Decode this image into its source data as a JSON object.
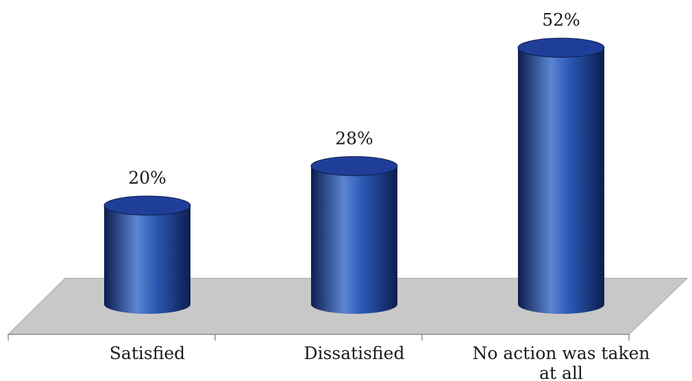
{
  "chart_data": {
    "type": "bar",
    "style": "3d-cylinder",
    "categories": [
      "Satisfied",
      "Dissatisfied",
      "No action was taken at all"
    ],
    "category_label_lines": [
      [
        "Satisfied"
      ],
      [
        "Dissatisfied"
      ],
      [
        "No action was taken",
        "at all"
      ]
    ],
    "values": [
      20,
      28,
      52
    ],
    "value_labels": [
      "20%",
      "28%",
      "52%"
    ],
    "unit": "%",
    "ylim": [
      0,
      52
    ],
    "title": "",
    "xlabel": "",
    "ylabel": "",
    "grid": false,
    "legend": "none",
    "colors": {
      "bar_light": "#5b86d2",
      "bar_mid": "#2b58b4",
      "bar_dark": "#0d1d4e",
      "bar_top": "#1f3e98",
      "floor": "#c8c8c8",
      "floor_edge": "#a6a6a6",
      "axis": "#7a7a7a"
    }
  }
}
